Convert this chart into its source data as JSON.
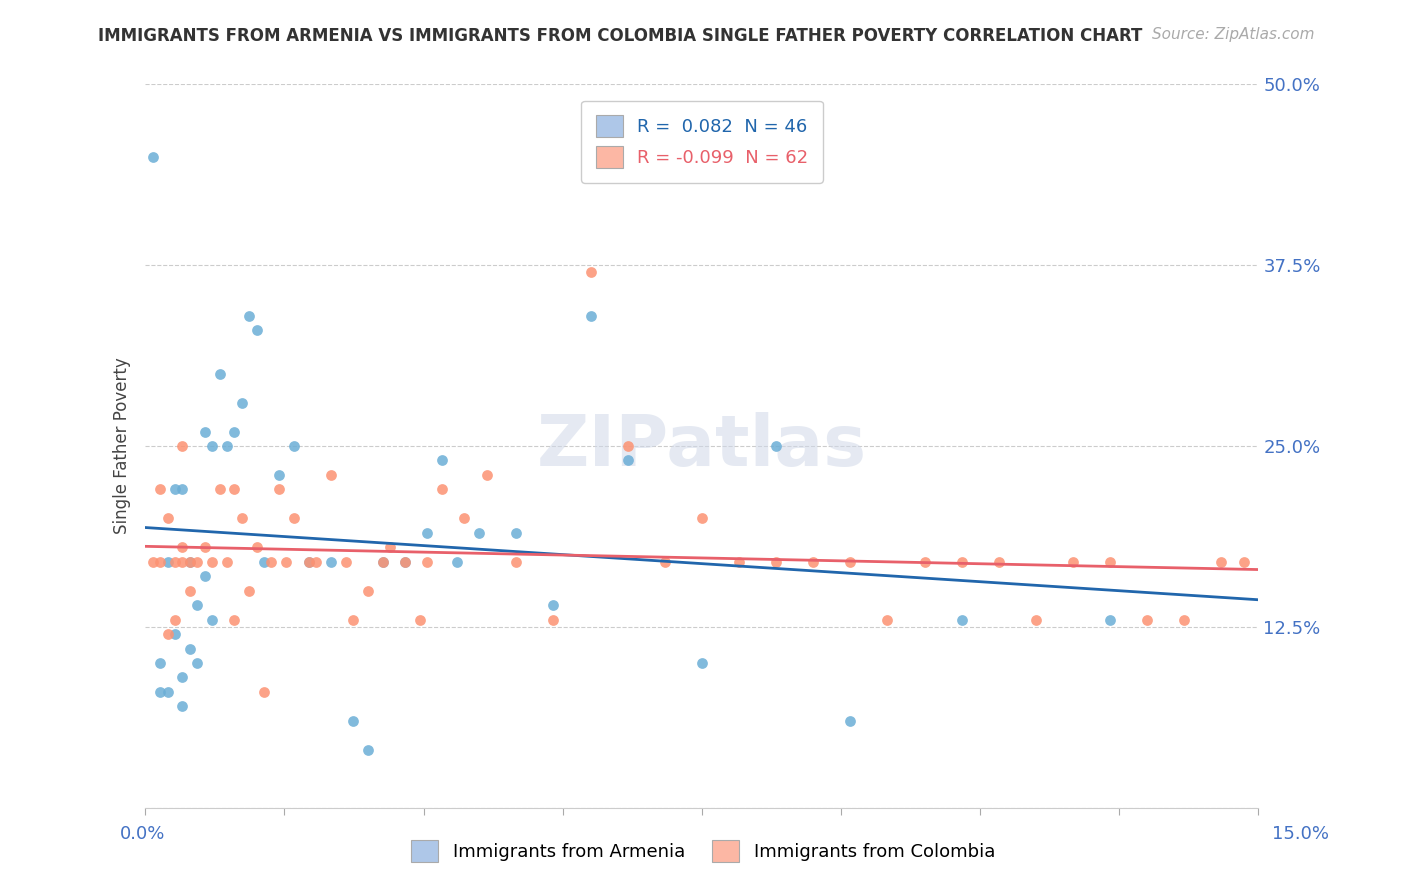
{
  "title": "IMMIGRANTS FROM ARMENIA VS IMMIGRANTS FROM COLOMBIA SINGLE FATHER POVERTY CORRELATION CHART",
  "source": "Source: ZipAtlas.com",
  "ylabel": "Single Father Poverty",
  "armenia_R": 0.082,
  "armenia_N": 46,
  "colombia_R": -0.099,
  "colombia_N": 62,
  "armenia_color": "#6baed6",
  "colombia_color": "#fc9272",
  "armenia_line_color": "#2166ac",
  "colombia_line_color": "#e8606a",
  "legend_armenia_fill": "#aec7e8",
  "legend_colombia_fill": "#fcb7a4",
  "x_min": 0.0,
  "x_max": 0.15,
  "y_min": 0.0,
  "y_max": 0.5,
  "yticks": [
    0.0,
    0.125,
    0.25,
    0.375,
    0.5
  ],
  "ytick_labels": [
    "",
    "12.5%",
    "25.0%",
    "37.5%",
    "50.0%"
  ],
  "armenia_x": [
    0.001,
    0.002,
    0.002,
    0.003,
    0.003,
    0.004,
    0.004,
    0.005,
    0.005,
    0.005,
    0.006,
    0.006,
    0.007,
    0.007,
    0.008,
    0.008,
    0.009,
    0.009,
    0.01,
    0.011,
    0.012,
    0.013,
    0.014,
    0.015,
    0.016,
    0.018,
    0.02,
    0.022,
    0.025,
    0.028,
    0.03,
    0.032,
    0.035,
    0.038,
    0.04,
    0.042,
    0.045,
    0.05,
    0.055,
    0.06,
    0.065,
    0.075,
    0.085,
    0.095,
    0.11,
    0.13
  ],
  "armenia_y": [
    0.45,
    0.08,
    0.1,
    0.17,
    0.08,
    0.12,
    0.22,
    0.07,
    0.09,
    0.22,
    0.17,
    0.11,
    0.14,
    0.1,
    0.16,
    0.26,
    0.25,
    0.13,
    0.3,
    0.25,
    0.26,
    0.28,
    0.34,
    0.33,
    0.17,
    0.23,
    0.25,
    0.17,
    0.17,
    0.06,
    0.04,
    0.17,
    0.17,
    0.19,
    0.24,
    0.17,
    0.19,
    0.19,
    0.14,
    0.34,
    0.24,
    0.1,
    0.25,
    0.06,
    0.13,
    0.13
  ],
  "colombia_x": [
    0.001,
    0.002,
    0.002,
    0.003,
    0.003,
    0.004,
    0.004,
    0.005,
    0.005,
    0.005,
    0.006,
    0.006,
    0.007,
    0.008,
    0.009,
    0.01,
    0.011,
    0.012,
    0.013,
    0.014,
    0.015,
    0.016,
    0.018,
    0.019,
    0.02,
    0.022,
    0.025,
    0.027,
    0.03,
    0.033,
    0.035,
    0.038,
    0.04,
    0.043,
    0.046,
    0.05,
    0.055,
    0.06,
    0.065,
    0.07,
    0.075,
    0.08,
    0.085,
    0.09,
    0.095,
    0.1,
    0.105,
    0.11,
    0.115,
    0.12,
    0.125,
    0.13,
    0.135,
    0.14,
    0.145,
    0.148,
    0.012,
    0.017,
    0.023,
    0.028,
    0.032,
    0.037
  ],
  "colombia_y": [
    0.17,
    0.22,
    0.17,
    0.12,
    0.2,
    0.13,
    0.17,
    0.18,
    0.25,
    0.17,
    0.15,
    0.17,
    0.17,
    0.18,
    0.17,
    0.22,
    0.17,
    0.22,
    0.2,
    0.15,
    0.18,
    0.08,
    0.22,
    0.17,
    0.2,
    0.17,
    0.23,
    0.17,
    0.15,
    0.18,
    0.17,
    0.17,
    0.22,
    0.2,
    0.23,
    0.17,
    0.13,
    0.37,
    0.25,
    0.17,
    0.2,
    0.17,
    0.17,
    0.17,
    0.17,
    0.13,
    0.17,
    0.17,
    0.17,
    0.13,
    0.17,
    0.17,
    0.13,
    0.13,
    0.17,
    0.17,
    0.13,
    0.17,
    0.17,
    0.13,
    0.17,
    0.13
  ]
}
